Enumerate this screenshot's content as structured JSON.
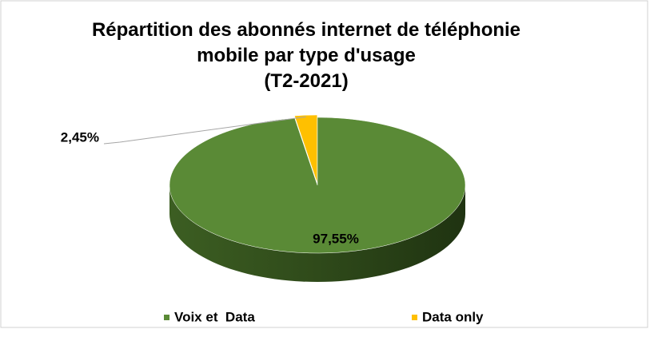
{
  "chart_data": {
    "type": "pie",
    "title": "Répartition des abonnés internet de téléphonie mobile par type d'usage",
    "subtitle": "(T2-2021)",
    "categories": [
      "Voix et  Data",
      "Data only"
    ],
    "values": [
      97.55,
      2.45
    ],
    "value_labels": [
      "97,55%",
      "2,45%"
    ],
    "colors": [
      "#5a8a36",
      "#ffc000"
    ],
    "legend": "bottom",
    "three_d": true
  }
}
